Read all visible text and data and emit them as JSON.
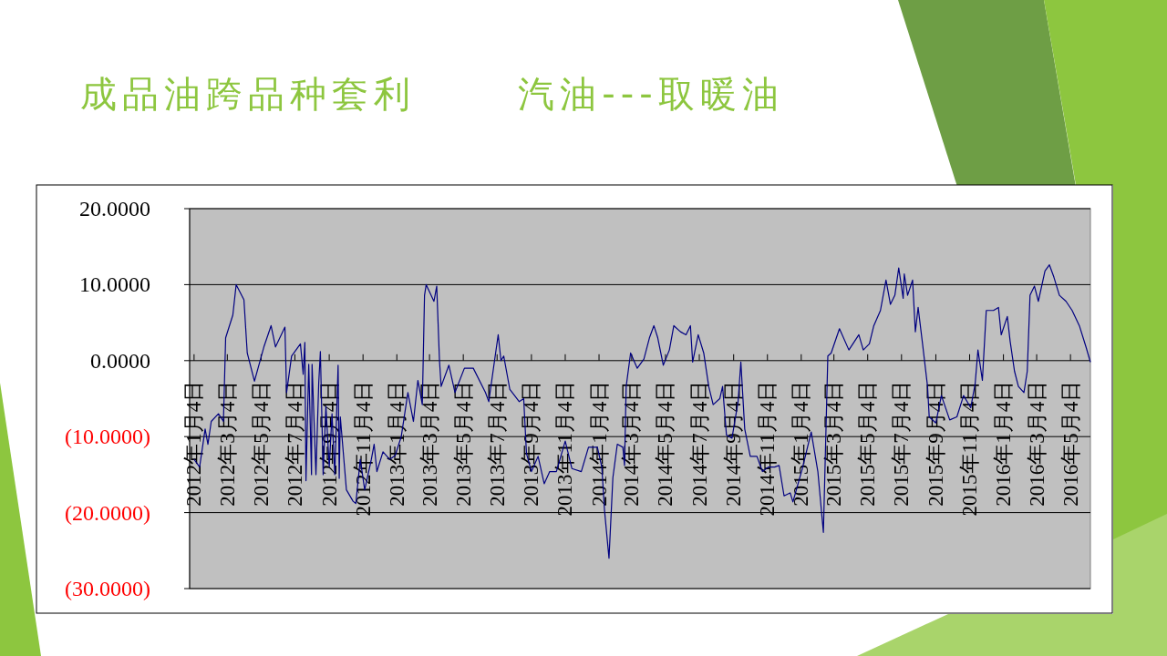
{
  "chart_data": {
    "type": "line",
    "title": "成品油跨品种套利      汽油---取暖油",
    "x": [
      "2012-01-04",
      "2012-01-14",
      "2012-01-24",
      "2012-01-29",
      "2012-02-04",
      "2012-02-17",
      "2012-02-26",
      "2012-03-01",
      "2012-03-14",
      "2012-03-20",
      "2012-04-03",
      "2012-04-09",
      "2012-04-22",
      "2012-05-09",
      "2012-05-22",
      "2012-05-30",
      "2012-06-16",
      "2012-06-19",
      "2012-06-28",
      "2012-07-14",
      "2012-07-19",
      "2012-07-22",
      "2012-07-24",
      "2012-07-29",
      "2012-08-03",
      "2012-08-04",
      "2012-08-11",
      "2012-08-16",
      "2012-08-19",
      "2012-08-24",
      "2012-08-29",
      "2012-09-04",
      "2012-09-09",
      "2012-09-14",
      "2012-09-20",
      "2012-09-22",
      "2012-09-24",
      "2012-10-05",
      "2012-10-17",
      "2012-10-22",
      "2012-10-30",
      "2012-11-07",
      "2012-11-19",
      "2012-11-24",
      "2012-11-29",
      "2012-12-10",
      "2012-12-22",
      "2013-01-01",
      "2013-01-12",
      "2013-01-24",
      "2013-02-03",
      "2013-02-11",
      "2013-02-19",
      "2013-02-23",
      "2013-02-26",
      "2013-03-12",
      "2013-03-17",
      "2013-03-22",
      "2013-03-25",
      "2013-04-08",
      "2013-04-19",
      "2013-05-06",
      "2013-05-22",
      "2013-06-13",
      "2013-06-19",
      "2013-06-29",
      "2013-07-06",
      "2013-07-11",
      "2013-07-16",
      "2013-07-27",
      "2013-08-13",
      "2013-08-21",
      "2013-08-26",
      "2013-09-04",
      "2013-09-16",
      "2013-09-27",
      "2013-10-07",
      "2013-10-19",
      "2013-11-04",
      "2013-11-16",
      "2013-12-03",
      "2013-12-16",
      "2014-01-01",
      "2014-01-09",
      "2014-01-14",
      "2014-01-22",
      "2014-01-29",
      "2014-02-06",
      "2014-02-16",
      "2014-02-19",
      "2014-02-22",
      "2014-03-02",
      "2014-03-14",
      "2014-03-26",
      "2014-04-05",
      "2014-04-13",
      "2014-04-20",
      "2014-04-30",
      "2014-05-11",
      "2014-05-19",
      "2014-05-31",
      "2014-06-10",
      "2014-06-18",
      "2014-06-22",
      "2014-07-02",
      "2014-07-12",
      "2014-07-21",
      "2014-07-29",
      "2014-08-10",
      "2014-08-15",
      "2014-08-22",
      "2014-09-01",
      "2014-09-12",
      "2014-09-17",
      "2014-09-24",
      "2014-10-04",
      "2014-10-16",
      "2014-10-26",
      "2014-11-06",
      "2014-11-17",
      "2014-11-25",
      "2014-12-04",
      "2014-12-15",
      "2014-12-20",
      "2015-01-06",
      "2015-01-22",
      "2015-02-03",
      "2015-02-13",
      "2015-02-21",
      "2015-02-27",
      "2015-03-14",
      "2015-03-31",
      "2015-04-18",
      "2015-04-26",
      "2015-05-07",
      "2015-05-15",
      "2015-05-27",
      "2015-06-06",
      "2015-06-14",
      "2015-06-22",
      "2015-06-29",
      "2015-07-07",
      "2015-07-09",
      "2015-07-15",
      "2015-07-24",
      "2015-07-29",
      "2015-08-03",
      "2015-08-11",
      "2015-08-20",
      "2015-08-23",
      "2015-09-04",
      "2015-09-14",
      "2015-09-29",
      "2015-10-12",
      "2015-10-24",
      "2015-11-06",
      "2015-11-14",
      "2015-11-19",
      "2015-11-27",
      "2015-12-04",
      "2015-12-17",
      "2015-12-26",
      "2015-12-31",
      "2016-01-11",
      "2016-01-16",
      "2016-01-24",
      "2016-01-31",
      "2016-02-10",
      "2016-02-16",
      "2016-02-21",
      "2016-02-29",
      "2016-03-07",
      "2016-03-19",
      "2016-03-27",
      "2016-04-04",
      "2016-04-14",
      "2016-04-26",
      "2016-05-07",
      "2016-05-20",
      "2016-06-01",
      "2016-06-09"
    ],
    "series": [
      {
        "color": "#000080",
        "values": [
          -13,
          -14,
          -9,
          -11,
          -8,
          -7,
          -8,
          3,
          6,
          10,
          8,
          1,
          -2.7,
          1.8,
          4.6,
          1.8,
          4.4,
          -4.2,
          0.6,
          2.2,
          -1.8,
          2.4,
          -15.8,
          -0.5,
          -15,
          -0.5,
          -15,
          -3,
          1.2,
          -15,
          -6,
          -14,
          -7,
          -15,
          -0.6,
          -15.5,
          -7.4,
          -17,
          -18.5,
          -18.8,
          -13,
          -17,
          -13,
          -11,
          -14.6,
          -12,
          -13,
          -12.5,
          -10,
          -4.2,
          -8,
          -2.6,
          -5.8,
          8.6,
          10,
          7.8,
          9.8,
          0,
          -3.4,
          -0.6,
          -4.2,
          -1,
          -1,
          -4.2,
          -5.4,
          -0.2,
          3.4,
          0,
          0.6,
          -3.8,
          -5.4,
          -5,
          -12.2,
          -14.6,
          -12.6,
          -16.2,
          -14.6,
          -14.6,
          -10.6,
          -14.2,
          -14.6,
          -11.4,
          -11.4,
          -14,
          -19.8,
          -26,
          -15.4,
          -11,
          -11.4,
          -13.8,
          -3.4,
          1,
          -1,
          0.2,
          3,
          4.6,
          3,
          -0.6,
          1.4,
          4.6,
          3.8,
          3.4,
          4.6,
          -0.2,
          3.4,
          1,
          -3.4,
          -5.8,
          -5,
          -3.4,
          -9.8,
          -10.2,
          -5.4,
          -0.2,
          -9,
          -12.6,
          -12.6,
          -14.6,
          -14,
          -14,
          -13.8,
          -17.8,
          -17.4,
          -18.6,
          -14.2,
          -9.4,
          -14.6,
          -22.6,
          0.6,
          1,
          4.2,
          1.4,
          3.4,
          1.4,
          2.2,
          4.6,
          6.6,
          10.6,
          7.4,
          8.6,
          12.2,
          8.2,
          11.4,
          8.6,
          10.6,
          3.8,
          7,
          2.2,
          -3.4,
          -7.4,
          -8.2,
          -4.6,
          -7.8,
          -7.4,
          -4.6,
          -6.2,
          -3,
          1.4,
          -2.6,
          6.6,
          6.6,
          7,
          3.4,
          5.8,
          2.6,
          -1.4,
          -3.4,
          -4.2,
          -1.4,
          8.6,
          9.8,
          7.8,
          11.8,
          12.6,
          11,
          8.6,
          7.8,
          6.6,
          4.6,
          1.8,
          -0.2
        ]
      }
    ],
    "xlim": [
      "2011-12-27",
      "2016-06-09"
    ],
    "ylim": [
      -30,
      20
    ],
    "yticks": [
      {
        "value": 20,
        "label": "20.0000"
      },
      {
        "value": 10,
        "label": "10.0000"
      },
      {
        "value": 0,
        "label": "0.0000"
      },
      {
        "value": -10,
        "label": "(10.0000)"
      },
      {
        "value": -20,
        "label": "(20.0000)"
      },
      {
        "value": -30,
        "label": "(30.0000)"
      }
    ],
    "xticks": [
      {
        "value": "2012-01-04",
        "label": "2012年1月4日"
      },
      {
        "value": "2012-03-04",
        "label": "2012年3月4日"
      },
      {
        "value": "2012-05-04",
        "label": "2012年5月4日"
      },
      {
        "value": "2012-07-04",
        "label": "2012年7月4日"
      },
      {
        "value": "2012-09-04",
        "label": "2012年9月4日"
      },
      {
        "value": "2012-11-04",
        "label": "2012年11月4日"
      },
      {
        "value": "2013-01-04",
        "label": "2013年1月4日"
      },
      {
        "value": "2013-03-04",
        "label": "2013年3月4日"
      },
      {
        "value": "2013-05-04",
        "label": "2013年5月4日"
      },
      {
        "value": "2013-07-04",
        "label": "2013年7月4日"
      },
      {
        "value": "2013-09-04",
        "label": "2013年9月4日"
      },
      {
        "value": "2013-11-04",
        "label": "2013年11月4日"
      },
      {
        "value": "2014-01-04",
        "label": "2014年1月4日"
      },
      {
        "value": "2014-03-04",
        "label": "2014年3月4日"
      },
      {
        "value": "2014-05-04",
        "label": "2014年5月4日"
      },
      {
        "value": "2014-07-04",
        "label": "2014年7月4日"
      },
      {
        "value": "2014-09-04",
        "label": "2014年9月4日"
      },
      {
        "value": "2014-11-04",
        "label": "2014年11月4日"
      },
      {
        "value": "2015-01-04",
        "label": "2015年1月4日"
      },
      {
        "value": "2015-03-04",
        "label": "2015年3月4日"
      },
      {
        "value": "2015-05-04",
        "label": "2015年5月4日"
      },
      {
        "value": "2015-07-04",
        "label": "2015年7月4日"
      },
      {
        "value": "2015-09-04",
        "label": "2015年9月4日"
      },
      {
        "value": "2015-11-04",
        "label": "2015年11月4日"
      },
      {
        "value": "2016-01-04",
        "label": "2016年1月4日"
      },
      {
        "value": "2016-03-04",
        "label": "2016年3月4日"
      },
      {
        "value": "2016-05-04",
        "label": "2016年5月4日"
      }
    ],
    "grid": "y"
  }
}
